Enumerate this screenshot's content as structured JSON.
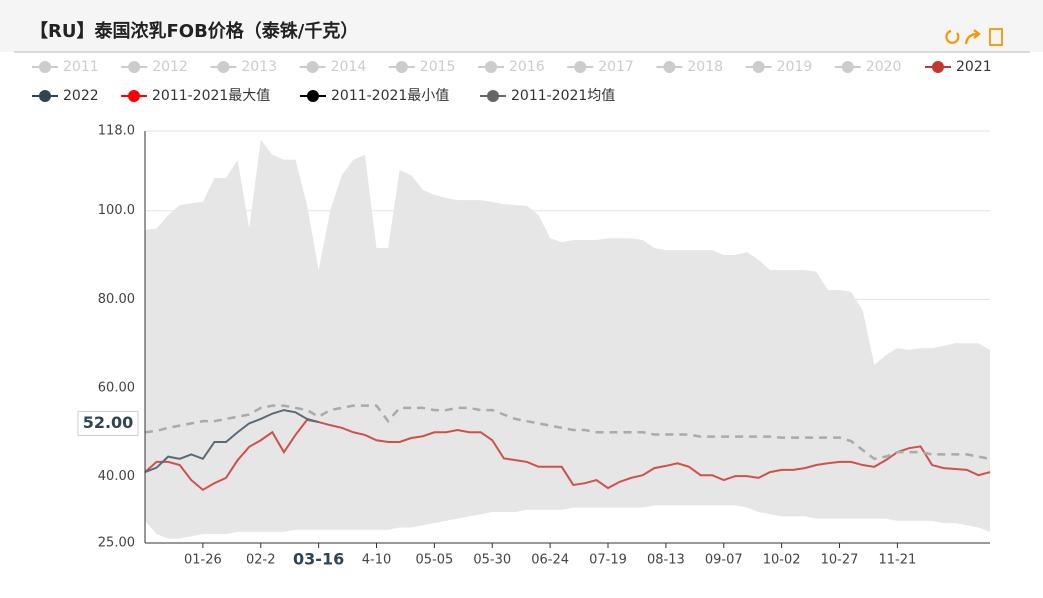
{
  "chart_data": {
    "type": "line",
    "title": "【RU】泰国浓乳FOB价格（泰铢/千克）",
    "categories": [
      null,
      null,
      null,
      null,
      null,
      "01-26",
      null,
      null,
      null,
      null,
      "02-2",
      null,
      null,
      null,
      null,
      "03-16",
      null,
      null,
      null,
      null,
      "4-10",
      null,
      null,
      null,
      null,
      "05-05",
      null,
      null,
      null,
      null,
      "05-30",
      null,
      null,
      null,
      null,
      "06-24",
      null,
      null,
      null,
      null,
      "07-19",
      null,
      null,
      null,
      null,
      "08-13",
      null,
      null,
      null,
      null,
      "09-07",
      null,
      null,
      null,
      null,
      "10-02",
      null,
      null,
      null,
      null,
      "10-27",
      null,
      null,
      null,
      null,
      "11-21",
      null,
      null,
      null,
      null,
      null,
      null,
      null,
      null
    ],
    "ylim": [
      25,
      118
    ],
    "yticks": [
      {
        "value": 25,
        "label": "25.00"
      },
      {
        "value": 40,
        "label": "40.00"
      },
      {
        "value": 60,
        "label": "60.00"
      },
      {
        "value": 80,
        "label": "80.00"
      },
      {
        "value": 100,
        "label": "100.0"
      },
      {
        "value": 118,
        "label": "118.0"
      }
    ],
    "grid": true,
    "band_color": "#e6e6e6",
    "inactive_color": "#cccccc",
    "inactive_series": [
      {
        "name": "2011"
      },
      {
        "name": "2012"
      },
      {
        "name": "2013"
      },
      {
        "name": "2014"
      },
      {
        "name": "2015"
      },
      {
        "name": "2016"
      },
      {
        "name": "2017"
      },
      {
        "name": "2018"
      },
      {
        "name": "2019"
      },
      {
        "name": "2020"
      }
    ],
    "pointer_category": 15,
    "y_pointer": {
      "value": 52,
      "label": "52.00"
    },
    "series": [
      {
        "name": "2021",
        "color": "#c23531",
        "line_color": "#d0504a",
        "values": [
          41.0,
          43.3,
          43.3,
          42.6,
          39.2,
          37,
          38.5,
          39.7,
          43.7,
          46.7,
          48.2,
          50,
          45.5,
          49.4,
          52.8,
          52.3,
          51.6,
          51,
          50,
          49.4,
          48.2,
          47.8,
          47.8,
          48.7,
          49.1,
          50,
          50,
          50.5,
          50,
          50,
          48.2,
          44.1,
          43.7,
          43.3,
          42.2,
          42.2,
          42.2,
          38.1,
          38.5,
          39.2,
          37.4,
          38.8,
          39.7,
          40.3,
          41.9,
          42.4,
          43,
          42.2,
          40.3,
          40.3,
          39.2,
          40.1,
          40.1,
          39.7,
          41,
          41.5,
          41.5,
          41.9,
          42.6,
          43,
          43.3,
          43.3,
          42.6,
          42.2,
          43.7,
          45.5,
          46.4,
          46.8,
          42.6,
          41.9,
          41.7,
          41.5,
          40.3,
          41
        ]
      },
      {
        "name": "2022",
        "color": "#2f4554",
        "line_color": "#5a6a78",
        "values": [
          41.0,
          42.0,
          44.5,
          44.0,
          45.0,
          44.0,
          47.8,
          47.8,
          50.0,
          52.0,
          53.0,
          54.2,
          55.0,
          54.5,
          53.0,
          52.3,
          null,
          null,
          null,
          null,
          null,
          null,
          null,
          null,
          null,
          null,
          null,
          null,
          null,
          null,
          null,
          null,
          null,
          null,
          null,
          null,
          null,
          null,
          null,
          null,
          null,
          null,
          null,
          null,
          null,
          null,
          null,
          null,
          null,
          null,
          null,
          null,
          null,
          null,
          null,
          null,
          null,
          null,
          null,
          null,
          null,
          null,
          null,
          null,
          null,
          null,
          null,
          null,
          null,
          null,
          null,
          null,
          null,
          null
        ]
      },
      {
        "name": "2011-2021最大值",
        "color": "#ff0000",
        "role": "upper",
        "values": [
          95.7,
          96,
          99,
          101.3,
          101.7,
          102,
          107.4,
          107.4,
          111.5,
          96,
          116,
          112.6,
          111.5,
          111.5,
          101.3,
          86.6,
          100,
          108,
          111.5,
          112.6,
          91.6,
          91.6,
          109.2,
          108,
          104.7,
          103.6,
          102.9,
          102.4,
          102.4,
          102.4,
          102,
          101.5,
          101.3,
          101.1,
          99,
          93.8,
          92.9,
          93.4,
          93.4,
          93.4,
          93.8,
          93.8,
          93.8,
          93.4,
          91.6,
          91.1,
          91.1,
          91.1,
          91.1,
          91.1,
          90,
          90,
          90.7,
          88.9,
          86.6,
          86.6,
          86.6,
          86.6,
          86.2,
          82.1,
          82.1,
          81.7,
          77.6,
          65.2,
          67.4,
          69,
          68.6,
          69,
          69,
          69.5,
          70.1,
          70.1,
          70.1,
          68.6
        ]
      },
      {
        "name": "2011-2021最小值",
        "color": "#000000",
        "role": "lower",
        "values": [
          30,
          27,
          26,
          26,
          26.5,
          27,
          27,
          27,
          27.5,
          27.5,
          27.5,
          27.5,
          27.5,
          28,
          28,
          28,
          28,
          28,
          28,
          28,
          28,
          28,
          28.5,
          28.5,
          29,
          29.5,
          30,
          30.5,
          31,
          31.5,
          32,
          32,
          32,
          32.5,
          32.5,
          32.5,
          32.5,
          33,
          33,
          33,
          33,
          33,
          33,
          33,
          33.5,
          33.5,
          33.5,
          33.5,
          33.5,
          33.5,
          33.5,
          33.5,
          33,
          32,
          31.5,
          31,
          31,
          31,
          30.5,
          30.5,
          30.5,
          30.5,
          30.5,
          30.5,
          30.5,
          30,
          30,
          30,
          30,
          29.5,
          29.5,
          29,
          28.5,
          27.5
        ]
      },
      {
        "name": "2011-2021均值",
        "color": "#666666",
        "line_color": "#aaaaaa",
        "dashed": true,
        "values": [
          50,
          50.3,
          51,
          51.5,
          52,
          52.5,
          52.5,
          53,
          53.5,
          54,
          55.5,
          56,
          56,
          55.5,
          55,
          53.5,
          55,
          55.5,
          56,
          56,
          56,
          52.5,
          55.5,
          55.5,
          55.5,
          55,
          55,
          55.5,
          55.5,
          55,
          55,
          54,
          53,
          52.5,
          52,
          51.5,
          51,
          50.5,
          50.5,
          50,
          50,
          50,
          50,
          50,
          49.5,
          49.5,
          49.5,
          49.5,
          49,
          49,
          49,
          49,
          49,
          49,
          49,
          48.8,
          48.8,
          48.8,
          48.8,
          48.8,
          48.8,
          48,
          46,
          44,
          44.5,
          45.5,
          45.5,
          45.5,
          45,
          45,
          45,
          45,
          44.5,
          44
        ]
      }
    ]
  }
}
